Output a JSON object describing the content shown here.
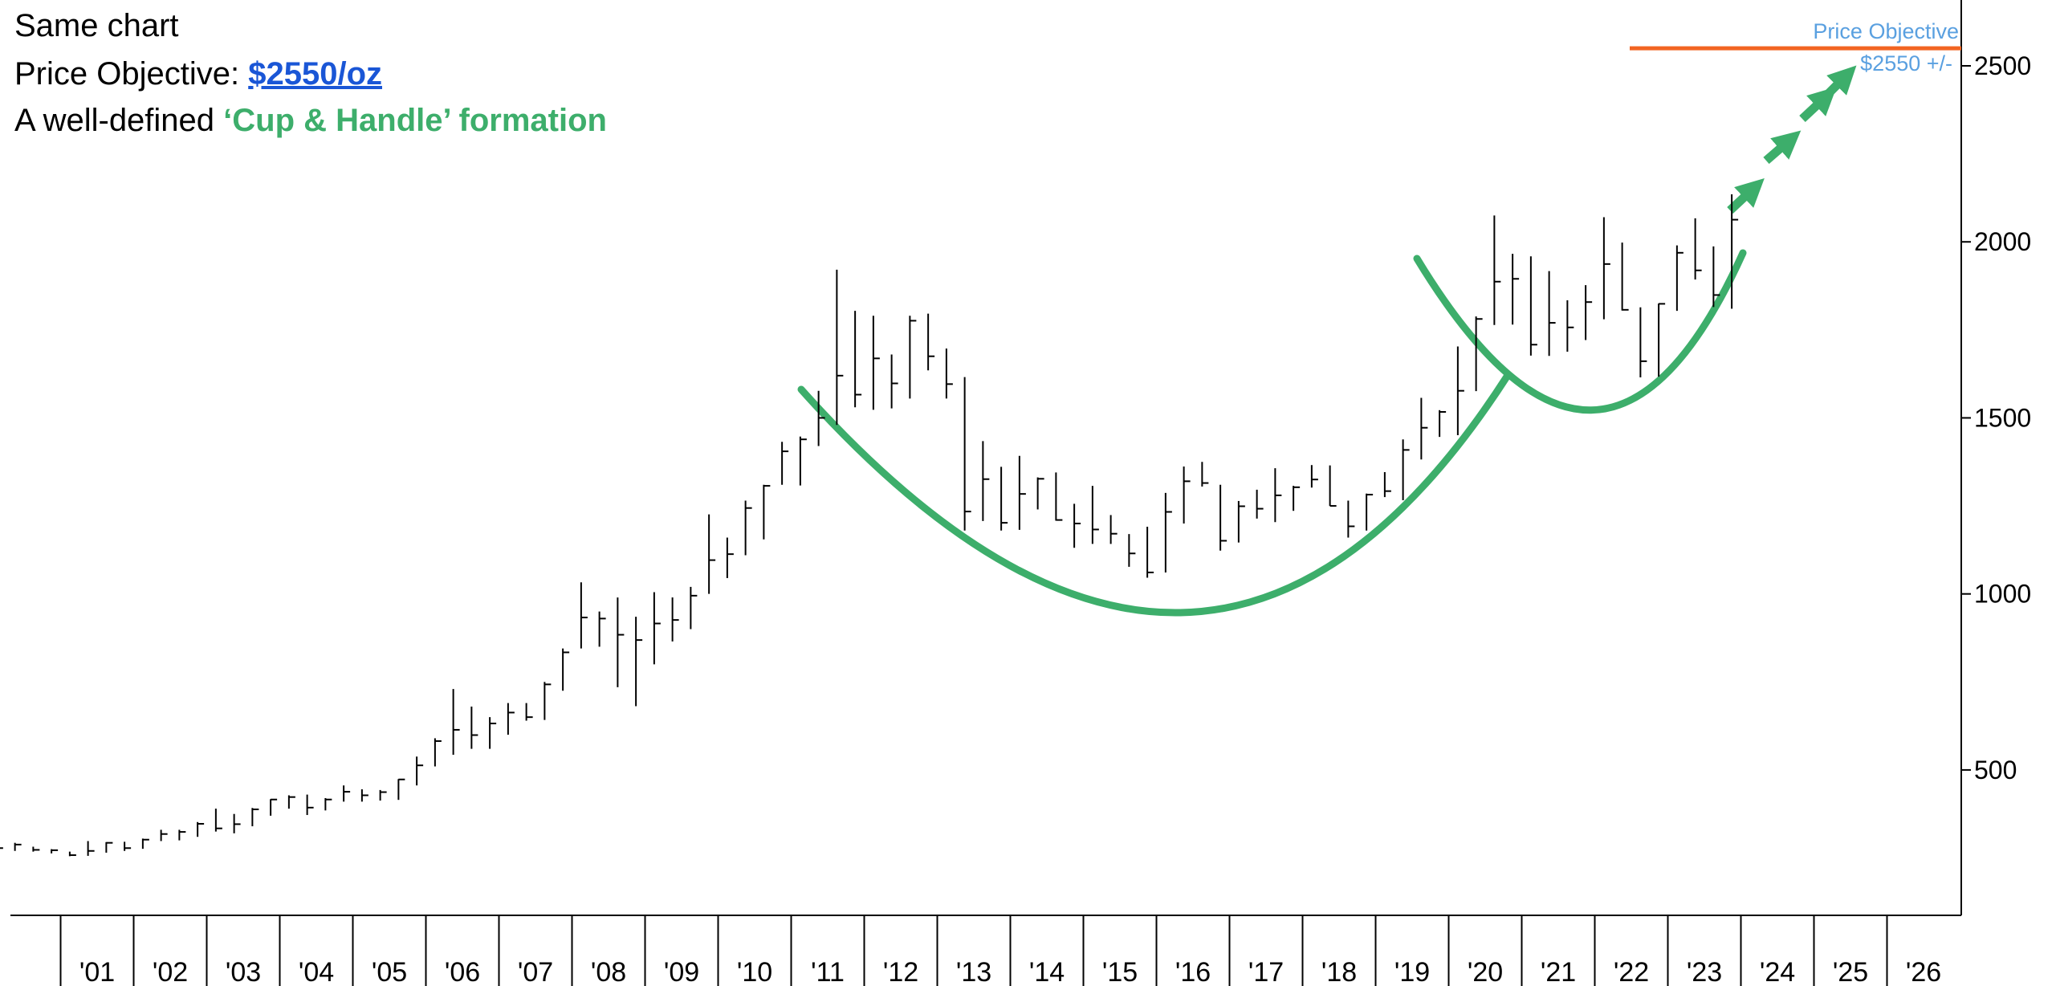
{
  "chart_data": {
    "type": "ohlc",
    "title": "Same chart",
    "objective_prefix": "Price Objective: ",
    "objective_value": "$2550/oz",
    "formation_prefix": "A well-defined ",
    "formation_name": "‘Cup & Handle’ formation",
    "target_label": "Price Objective",
    "target_value_label": "$2550 +/-",
    "target": 2550,
    "categories": [
      "'01",
      "'02",
      "'03",
      "'04",
      "'05",
      "'06",
      "'07",
      "'08",
      "'09",
      "'10",
      "'11",
      "'12",
      "'13",
      "'14",
      "'15",
      "'16",
      "'17",
      "'18",
      "'19",
      "'20",
      "'21",
      "'22",
      "'23",
      "'24",
      "'25",
      "'26"
    ],
    "high": [
      316,
      293,
      282,
      275,
      268,
      298,
      295,
      296,
      305,
      330,
      330,
      352,
      390,
      375,
      392,
      417,
      428,
      430,
      420,
      456,
      445,
      443,
      474,
      538,
      590,
      730,
      680,
      650,
      690,
      690,
      750,
      845,
      1033,
      950,
      990,
      935,
      1005,
      990,
      1020,
      1226,
      1160,
      1265,
      1310,
      1432,
      1447,
      1577,
      1921,
      1804,
      1790,
      1680,
      1790,
      1796,
      1697,
      1616,
      1434,
      1361,
      1392,
      1331,
      1345,
      1256,
      1307,
      1224,
      1170,
      1191,
      1287,
      1362,
      1375,
      1310,
      1264,
      1296,
      1357,
      1307,
      1366,
      1365,
      1265,
      1285,
      1346,
      1439,
      1557,
      1522,
      1703,
      1788,
      2075,
      1966,
      1959,
      1917,
      1834,
      1877,
      2070,
      1998,
      1814,
      1825,
      1990,
      2067,
      1987,
      2135
    ],
    "low": [
      278,
      270,
      268,
      263,
      255,
      256,
      265,
      270,
      276,
      298,
      300,
      310,
      325,
      320,
      340,
      370,
      390,
      372,
      385,
      410,
      410,
      413,
      415,
      456,
      510,
      543,
      560,
      560,
      600,
      640,
      642,
      725,
      845,
      850,
      735,
      681,
      800,
      865,
      900,
      1000,
      1045,
      1110,
      1155,
      1310,
      1308,
      1420,
      1480,
      1530,
      1523,
      1527,
      1555,
      1635,
      1555,
      1180,
      1207,
      1180,
      1182,
      1240,
      1208,
      1131,
      1142,
      1142,
      1077,
      1046,
      1061,
      1200,
      1305,
      1123,
      1146,
      1214,
      1204,
      1236,
      1302,
      1250,
      1160,
      1180,
      1275,
      1266,
      1382,
      1446,
      1451,
      1576,
      1764,
      1765,
      1677,
      1676,
      1688,
      1721,
      1780,
      1805,
      1615,
      1617,
      1804,
      1893,
      1815,
      1810
    ],
    "close": [
      278,
      288,
      273,
      272,
      258,
      270,
      293,
      278,
      302,
      318,
      324,
      347,
      334,
      346,
      388,
      416,
      423,
      393,
      416,
      438,
      428,
      437,
      473,
      513,
      582,
      614,
      599,
      632,
      663,
      650,
      743,
      834,
      933,
      930,
      884,
      869,
      916,
      926,
      995,
      1096,
      1113,
      1244,
      1307,
      1405,
      1439,
      1500,
      1620,
      1566,
      1669,
      1598,
      1776,
      1675,
      1596,
      1234,
      1326,
      1202,
      1284,
      1327,
      1210,
      1200,
      1183,
      1171,
      1115,
      1061,
      1233,
      1320,
      1315,
      1151,
      1249,
      1242,
      1280,
      1303,
      1325,
      1250,
      1192,
      1282,
      1292,
      1409,
      1472,
      1517,
      1577,
      1781,
      1887,
      1895,
      1708,
      1770,
      1757,
      1829,
      1937,
      1807,
      1661,
      1824,
      1969,
      1919,
      1849,
      2063
    ],
    "color": "#000000",
    "ylim": [
      87,
      2687
    ],
    "yticks": [
      500,
      1000,
      1500,
      2000,
      2500
    ]
  }
}
